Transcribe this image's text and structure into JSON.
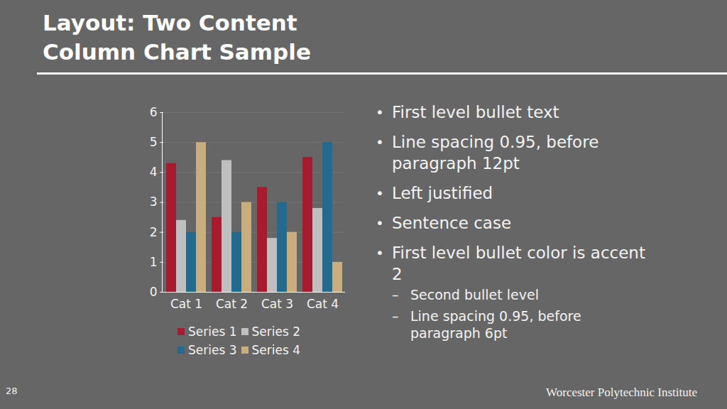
{
  "chart_data": {
    "type": "bar",
    "categories": [
      "Cat 1",
      "Cat 2",
      "Cat 3",
      "Cat 4"
    ],
    "series": [
      {
        "name": "Series 1",
        "color": "#a61c2e",
        "values": [
          4.3,
          2.5,
          3.5,
          4.5
        ]
      },
      {
        "name": "Series 2",
        "color": "#bfbfbf",
        "values": [
          2.4,
          4.4,
          1.8,
          2.8
        ]
      },
      {
        "name": "Series 3",
        "color": "#236b8e",
        "values": [
          2,
          2,
          3,
          5
        ]
      },
      {
        "name": "Series 4",
        "color": "#c8ad7f",
        "values": [
          5,
          3,
          2,
          1
        ]
      }
    ],
    "ylim": [
      0,
      6
    ],
    "yticks": [
      0,
      1,
      2,
      3,
      4,
      5,
      6
    ],
    "grid": true,
    "legend": "bottom"
  },
  "slide": {
    "title": "Layout: Two Content Column Chart Sample",
    "bullets": [
      {
        "text": "First level bullet text",
        "sub": []
      },
      {
        "text": "Line spacing 0.95, before paragraph 12pt",
        "sub": []
      },
      {
        "text": "Left justified",
        "sub": []
      },
      {
        "text": "Sentence case",
        "sub": []
      },
      {
        "text": "First level bullet color is accent 2",
        "sub": [
          "Second bullet level",
          "Line spacing 0.95, before paragraph 6pt"
        ]
      }
    ],
    "page_number": "28",
    "footer": "Worcester Polytechnic Institute"
  }
}
